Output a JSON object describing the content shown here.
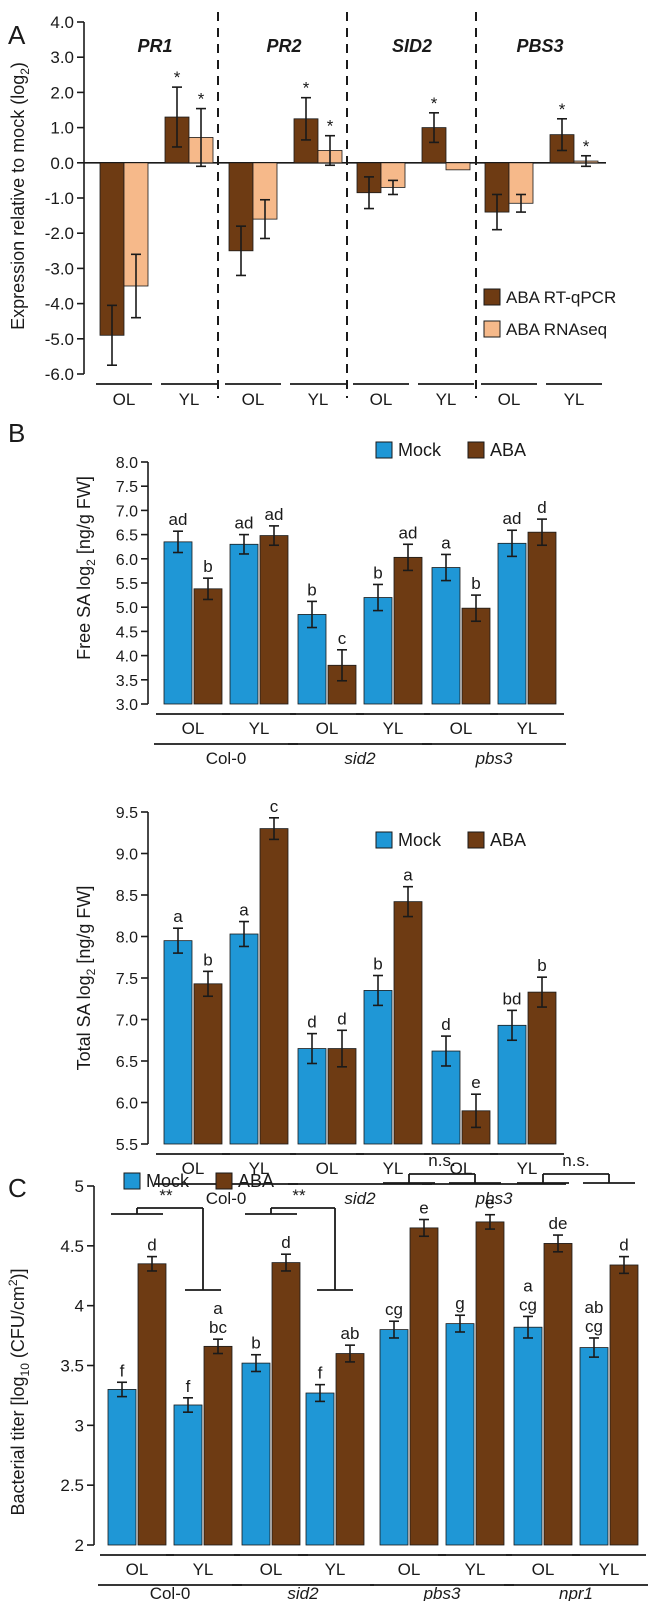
{
  "colors": {
    "aba_dark": "#6e3b13",
    "aba_light": "#f6b98a",
    "mock": "#1f97d6",
    "axis": "#1a1a1a"
  },
  "chart_data": [
    {
      "panel": "A",
      "type": "bar",
      "ylabel": "Expression relative to mock (log2)",
      "ylim": [
        -6.0,
        4.0
      ],
      "yticks": [
        "4.0",
        "3.0",
        "2.0",
        "1.0",
        "0.0",
        "-1.0",
        "-2.0",
        "-3.0",
        "-4.0",
        "-5.0",
        "-6.0"
      ],
      "groups": [
        {
          "gene": "PR1",
          "categories": [
            "OL",
            "YL"
          ]
        },
        {
          "gene": "PR2",
          "categories": [
            "OL",
            "YL"
          ]
        },
        {
          "gene": "SID2",
          "categories": [
            "OL",
            "YL"
          ]
        },
        {
          "gene": "PBS3",
          "categories": [
            "OL",
            "YL"
          ]
        }
      ],
      "legend": [
        "ABA RT-qPCR",
        "ABA RNAseq"
      ],
      "legend_position": "lower-right",
      "series": [
        {
          "name": "ABA RT-qPCR",
          "values": [
            -4.9,
            1.3,
            -2.5,
            1.25,
            -0.85,
            1.0,
            -1.4,
            0.8
          ],
          "errors": [
            0.85,
            0.85,
            0.7,
            0.6,
            0.45,
            0.42,
            0.5,
            0.45
          ],
          "labels": [
            "",
            "*",
            "",
            "*",
            "",
            "*",
            "",
            "*"
          ]
        },
        {
          "name": "ABA RNAseq",
          "values": [
            -3.5,
            0.72,
            -1.6,
            0.35,
            -0.7,
            -0.2,
            -1.15,
            0.05
          ],
          "errors": [
            0.9,
            0.82,
            0.55,
            0.42,
            0.2,
            0.0,
            0.25,
            0.15
          ],
          "labels": [
            "",
            "*",
            "",
            "*",
            "",
            "",
            "",
            "*"
          ]
        }
      ]
    },
    {
      "panel": "B",
      "type": "bar",
      "ylabel": "Free SA log2 [ng/g FW]",
      "ylim": [
        3.0,
        8.0
      ],
      "yticks": [
        "8.0",
        "7.5",
        "7.0",
        "6.5",
        "6.0",
        "5.5",
        "5.0",
        "4.5",
        "4.0",
        "3.5",
        "3.0"
      ],
      "groups": [
        {
          "genotype": "Col-0",
          "italic": false,
          "categories": [
            "OL",
            "YL"
          ]
        },
        {
          "genotype": "sid2",
          "italic": true,
          "categories": [
            "OL",
            "YL"
          ]
        },
        {
          "genotype": "pbs3",
          "italic": true,
          "categories": [
            "OL",
            "YL"
          ]
        }
      ],
      "legend": [
        "Mock",
        "ABA"
      ],
      "legend_position": "top-right",
      "series": [
        {
          "name": "Mock",
          "values": [
            6.35,
            6.3,
            4.85,
            5.2,
            5.82,
            6.32
          ],
          "errors": [
            0.22,
            0.2,
            0.27,
            0.27,
            0.27,
            0.27
          ],
          "labels": [
            "ad",
            "ad",
            "b",
            "b",
            "a",
            "ad"
          ]
        },
        {
          "name": "ABA",
          "values": [
            5.38,
            6.48,
            3.8,
            6.03,
            4.98,
            6.55
          ],
          "errors": [
            0.22,
            0.2,
            0.32,
            0.27,
            0.27,
            0.27
          ],
          "labels": [
            "b",
            "ad",
            "c",
            "ad",
            "b",
            "d"
          ]
        }
      ]
    },
    {
      "panel": "B2",
      "type": "bar",
      "ylabel": "Total SA log2 [ng/g FW]",
      "ylim": [
        5.5,
        9.5
      ],
      "yticks": [
        "9.5",
        "9.0",
        "8.5",
        "8.0",
        "7.5",
        "7.0",
        "6.5",
        "6.0",
        "5.5"
      ],
      "groups": [
        {
          "genotype": "Col-0",
          "italic": false,
          "categories": [
            "OL",
            "YL"
          ]
        },
        {
          "genotype": "sid2",
          "italic": true,
          "categories": [
            "OL",
            "YL"
          ]
        },
        {
          "genotype": "pbs3",
          "italic": true,
          "categories": [
            "OL",
            "YL"
          ]
        }
      ],
      "legend": [
        "Mock",
        "ABA"
      ],
      "legend_position": "top-right",
      "series": [
        {
          "name": "Mock",
          "values": [
            7.95,
            8.03,
            6.65,
            7.35,
            6.62,
            6.93
          ],
          "errors": [
            0.15,
            0.15,
            0.18,
            0.18,
            0.18,
            0.18
          ],
          "labels": [
            "a",
            "a",
            "d",
            "b",
            "d",
            "bd"
          ]
        },
        {
          "name": "ABA",
          "values": [
            7.43,
            9.3,
            6.65,
            8.42,
            5.9,
            7.33
          ],
          "errors": [
            0.15,
            0.13,
            0.22,
            0.18,
            0.2,
            0.18
          ],
          "labels": [
            "b",
            "c",
            "d",
            "a",
            "e",
            "b"
          ]
        }
      ]
    },
    {
      "panel": "C",
      "type": "bar",
      "ylabel": "Bacterial titer [log10 (CFU/cm2)]",
      "ylim": [
        2,
        5
      ],
      "yticks": [
        "5",
        "4.5",
        "4",
        "3.5",
        "3",
        "2.5",
        "2"
      ],
      "groups": [
        {
          "genotype": "Col-0",
          "italic": false,
          "categories": [
            "OL",
            "YL"
          ]
        },
        {
          "genotype": "sid2",
          "italic": true,
          "categories": [
            "OL",
            "YL"
          ]
        },
        {
          "genotype": "pbs3",
          "italic": true,
          "categories": [
            "OL",
            "YL"
          ]
        },
        {
          "genotype": "npr1",
          "italic": true,
          "categories": [
            "OL",
            "YL"
          ]
        }
      ],
      "legend": [
        "Mock",
        "ABA"
      ],
      "legend_position": "top-left",
      "series": [
        {
          "name": "Mock",
          "values": [
            3.3,
            3.17,
            3.52,
            3.27,
            3.8,
            3.85,
            3.82,
            3.65
          ],
          "errors": [
            0.06,
            0.06,
            0.07,
            0.07,
            0.07,
            0.07,
            0.09,
            0.08
          ],
          "labels": [
            "f",
            "f",
            "b",
            "f",
            "cg",
            "g",
            "a|cg",
            "ab|cg"
          ]
        },
        {
          "name": "ABA",
          "values": [
            4.35,
            3.66,
            4.36,
            3.6,
            4.65,
            4.7,
            4.52,
            4.34
          ],
          "errors": [
            0.06,
            0.06,
            0.07,
            0.07,
            0.07,
            0.06,
            0.07,
            0.07
          ],
          "labels": [
            "d",
            "a|bc",
            "d",
            "ab",
            "e",
            "e",
            "de",
            "d"
          ]
        }
      ],
      "comparisons": [
        {
          "group": "Col-0",
          "label": "**"
        },
        {
          "group": "sid2",
          "label": "**"
        },
        {
          "group": "pbs3",
          "label": "n.s."
        },
        {
          "group": "npr1",
          "label": "n.s."
        }
      ]
    }
  ],
  "text": {
    "panel_a": "A",
    "panel_b": "B",
    "panel_c": "C",
    "a_ylabel_main": "Expression relative to mock (log",
    "a_ylabel_sub": "2",
    "a_ylabel_end": ")",
    "b_ylabel_main": "Free SA log",
    "b_ylabel_sub": "2",
    "b_ylabel_end": " [ng/g FW]",
    "b2_ylabel_main": "Total SA log",
    "b2_ylabel_sub": "2",
    "b2_ylabel_end": " [ng/g FW]",
    "c_ylabel_main": "Bacterial titer [log",
    "c_ylabel_sub": "10",
    "c_ylabel_mid": " (CFU/cm",
    "c_ylabel_sup": "2",
    "c_ylabel_end": ")]"
  }
}
